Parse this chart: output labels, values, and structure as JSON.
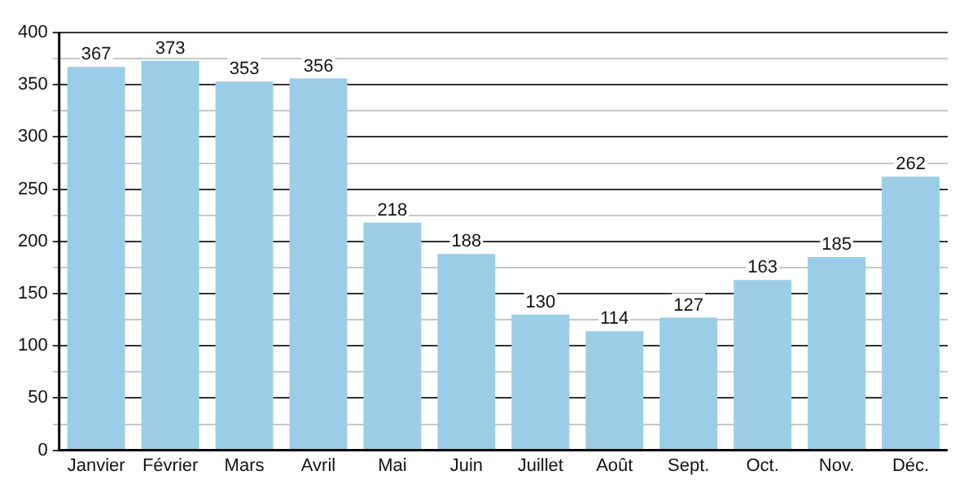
{
  "chart_data": {
    "type": "bar",
    "categories": [
      "Janvier",
      "Février",
      "Mars",
      "Avril",
      "Mai",
      "Juin",
      "Juillet",
      "Août",
      "Sept.",
      "Oct.",
      "Nov.",
      "Déc."
    ],
    "values": [
      367,
      373,
      353,
      356,
      218,
      188,
      130,
      114,
      127,
      163,
      185,
      262
    ],
    "color": "#9bcde6",
    "ylim": [
      0,
      400
    ],
    "yticks": [
      0,
      {
        "value": 25,
        "label": null
      },
      50,
      {
        "value": 75,
        "label": null
      },
      100,
      {
        "value": 125,
        "label": null
      },
      150,
      {
        "value": 175,
        "label": null
      },
      200,
      {
        "value": 225,
        "label": null
      },
      250,
      {
        "value": 275,
        "label": null
      },
      300,
      {
        "value": 325,
        "label": null
      },
      350,
      {
        "value": 375,
        "label": null
      },
      400
    ],
    "grid": true,
    "data_labels": true
  }
}
